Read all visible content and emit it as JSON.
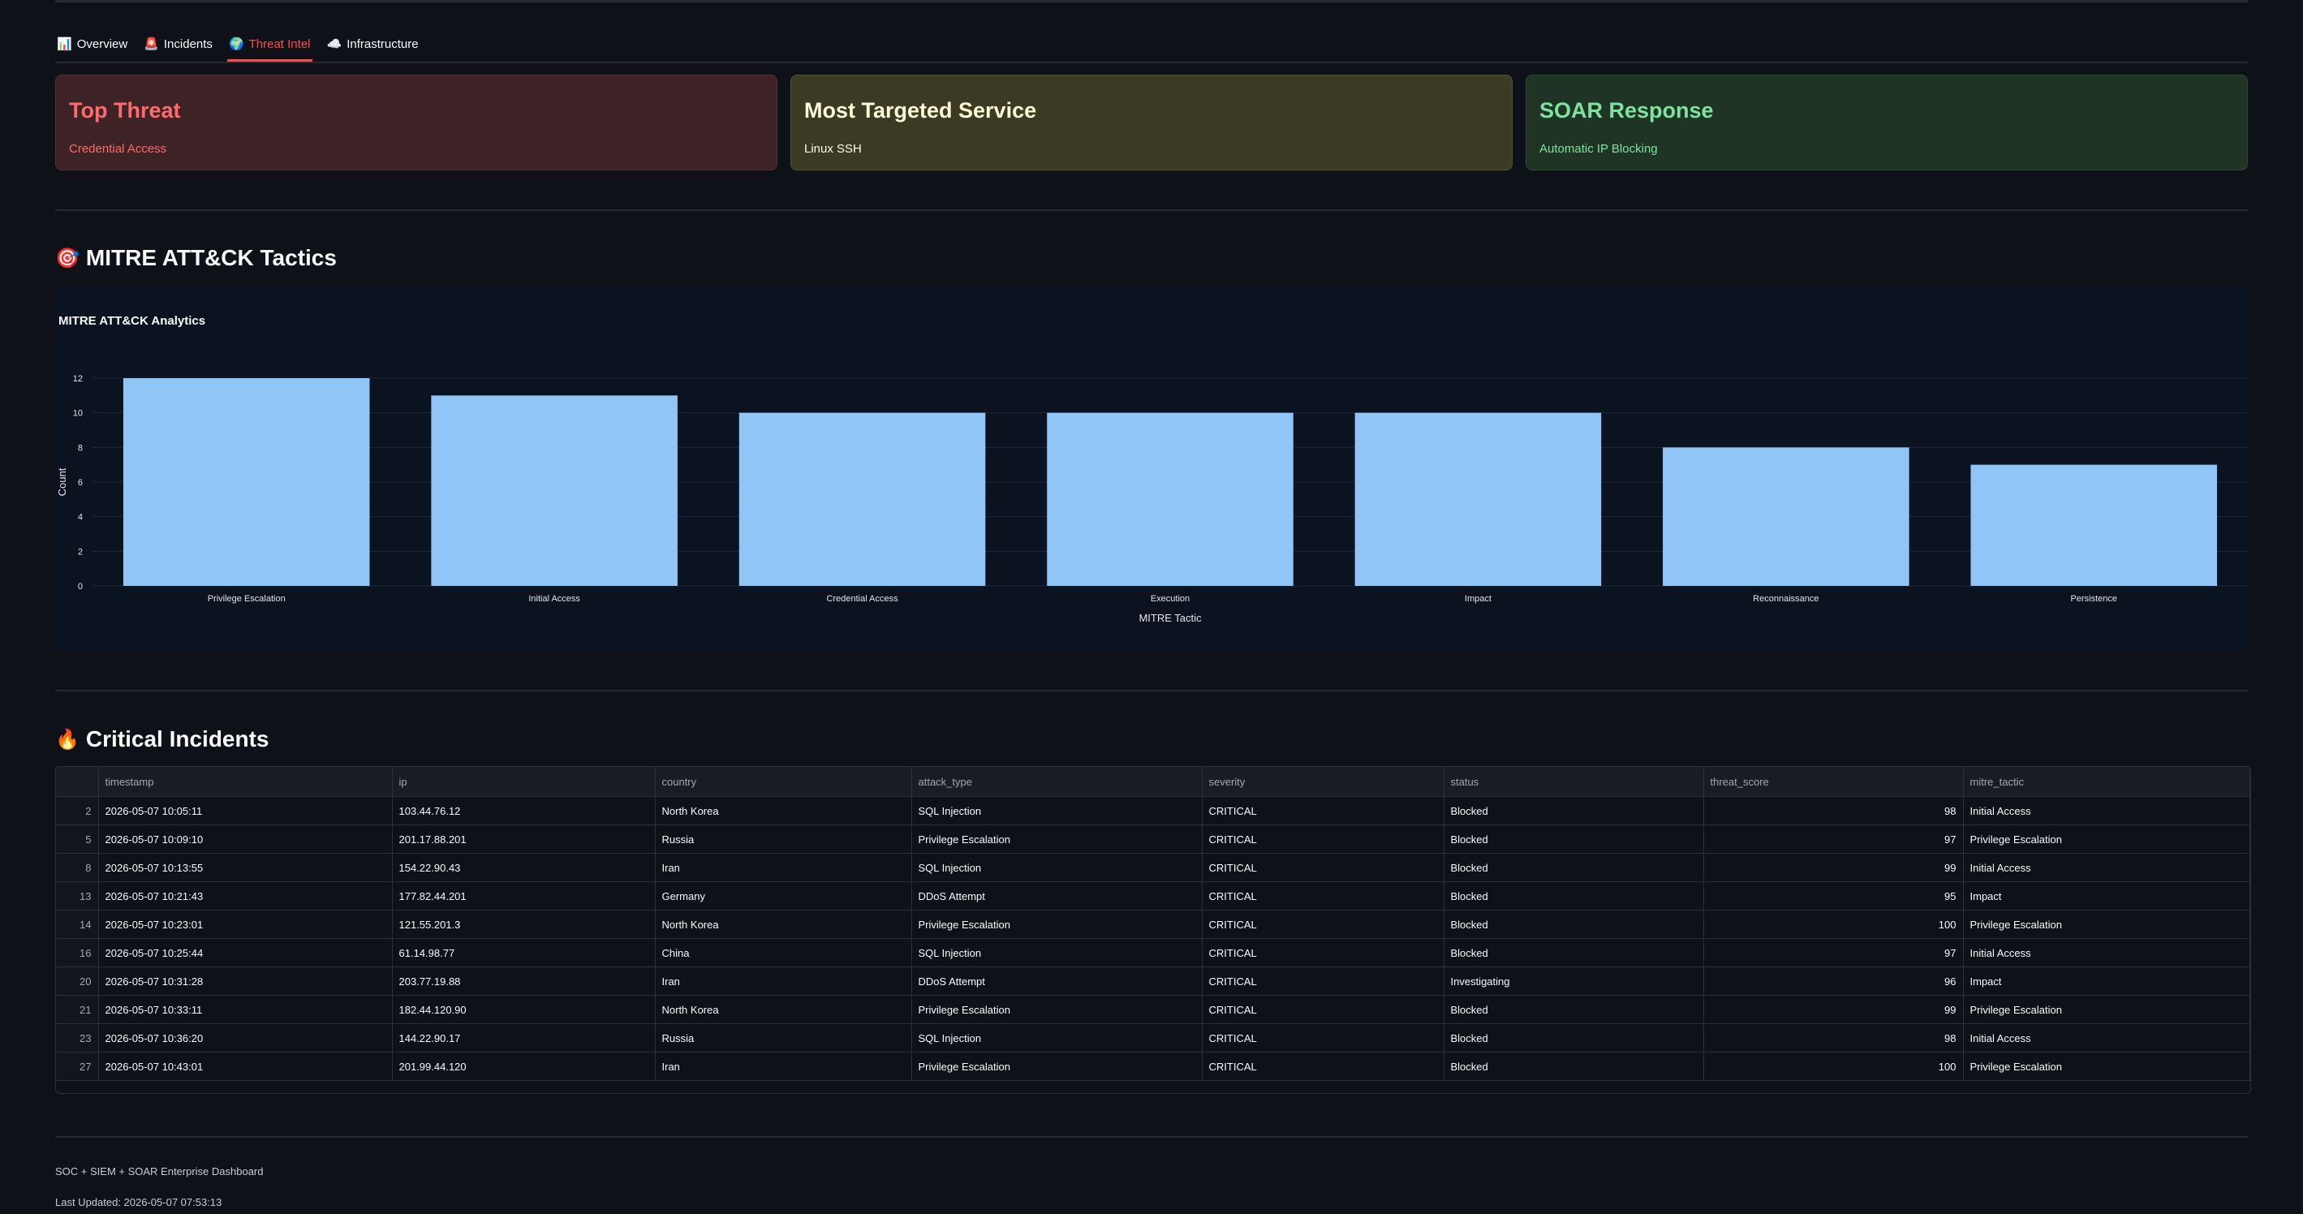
{
  "tabs": [
    {
      "icon": "📊",
      "label": "Overview"
    },
    {
      "icon": "🚨",
      "label": "Incidents"
    },
    {
      "icon": "🌍",
      "label": "Threat Intel"
    },
    {
      "icon": "☁️",
      "label": "Infrastructure"
    }
  ],
  "active_tab": 2,
  "cards": [
    {
      "title": "Top Threat",
      "value": "Credential Access",
      "color": "#ff6b6b"
    },
    {
      "title": "Most Targeted Service",
      "value": "Linux SSH",
      "color": "#fff8d6"
    },
    {
      "title": "SOAR Response",
      "value": "Automatic IP Blocking",
      "color": "#7fe3a0"
    }
  ],
  "mitre_section": {
    "icon": "🎯",
    "title": "MITRE ATT&CK Tactics"
  },
  "chart_data": {
    "type": "bar",
    "title": "MITRE ATT&CK Analytics",
    "xlabel": "MITRE Tactic",
    "ylabel": "Count",
    "categories": [
      "Privilege Escalation",
      "Initial Access",
      "Credential Access",
      "Execution",
      "Impact",
      "Reconnaissance",
      "Persistence"
    ],
    "values": [
      12,
      11,
      10,
      10,
      10,
      8,
      7
    ],
    "ylim": [
      0,
      12
    ],
    "yticks": [
      0,
      2,
      4,
      6,
      8,
      10,
      12
    ],
    "bar_color": "#90c5f7",
    "grid": true
  },
  "incidents_section": {
    "icon": "🔥",
    "title": "Critical Incidents"
  },
  "table": {
    "columns": [
      "timestamp",
      "ip",
      "country",
      "attack_type",
      "severity",
      "status",
      "threat_score",
      "mitre_tactic"
    ],
    "rows": [
      {
        "idx": "2",
        "cells": [
          "2026-05-07 10:05:11",
          "103.44.76.12",
          "North Korea",
          "SQL Injection",
          "CRITICAL",
          "Blocked",
          "98",
          "Initial Access"
        ]
      },
      {
        "idx": "5",
        "cells": [
          "2026-05-07 10:09:10",
          "201.17.88.201",
          "Russia",
          "Privilege Escalation",
          "CRITICAL",
          "Blocked",
          "97",
          "Privilege Escalation"
        ]
      },
      {
        "idx": "8",
        "cells": [
          "2026-05-07 10:13:55",
          "154.22.90.43",
          "Iran",
          "SQL Injection",
          "CRITICAL",
          "Blocked",
          "99",
          "Initial Access"
        ]
      },
      {
        "idx": "13",
        "cells": [
          "2026-05-07 10:21:43",
          "177.82.44.201",
          "Germany",
          "DDoS Attempt",
          "CRITICAL",
          "Blocked",
          "95",
          "Impact"
        ]
      },
      {
        "idx": "14",
        "cells": [
          "2026-05-07 10:23:01",
          "121.55.201.3",
          "North Korea",
          "Privilege Escalation",
          "CRITICAL",
          "Blocked",
          "100",
          "Privilege Escalation"
        ]
      },
      {
        "idx": "16",
        "cells": [
          "2026-05-07 10:25:44",
          "61.14.98.77",
          "China",
          "SQL Injection",
          "CRITICAL",
          "Blocked",
          "97",
          "Initial Access"
        ]
      },
      {
        "idx": "20",
        "cells": [
          "2026-05-07 10:31:28",
          "203.77.19.88",
          "Iran",
          "DDoS Attempt",
          "CRITICAL",
          "Investigating",
          "96",
          "Impact"
        ]
      },
      {
        "idx": "21",
        "cells": [
          "2026-05-07 10:33:11",
          "182.44.120.90",
          "North Korea",
          "Privilege Escalation",
          "CRITICAL",
          "Blocked",
          "99",
          "Privilege Escalation"
        ]
      },
      {
        "idx": "23",
        "cells": [
          "2026-05-07 10:36:20",
          "144.22.90.17",
          "Russia",
          "SQL Injection",
          "CRITICAL",
          "Blocked",
          "98",
          "Initial Access"
        ]
      },
      {
        "idx": "27",
        "cells": [
          "2026-05-07 10:43:01",
          "201.99.44.120",
          "Iran",
          "Privilege Escalation",
          "CRITICAL",
          "Blocked",
          "100",
          "Privilege Escalation"
        ]
      }
    ]
  },
  "footer": {
    "line1": "SOC + SIEM + SOAR Enterprise Dashboard",
    "line2": "Last Updated: 2026-05-07 07:53:13"
  }
}
